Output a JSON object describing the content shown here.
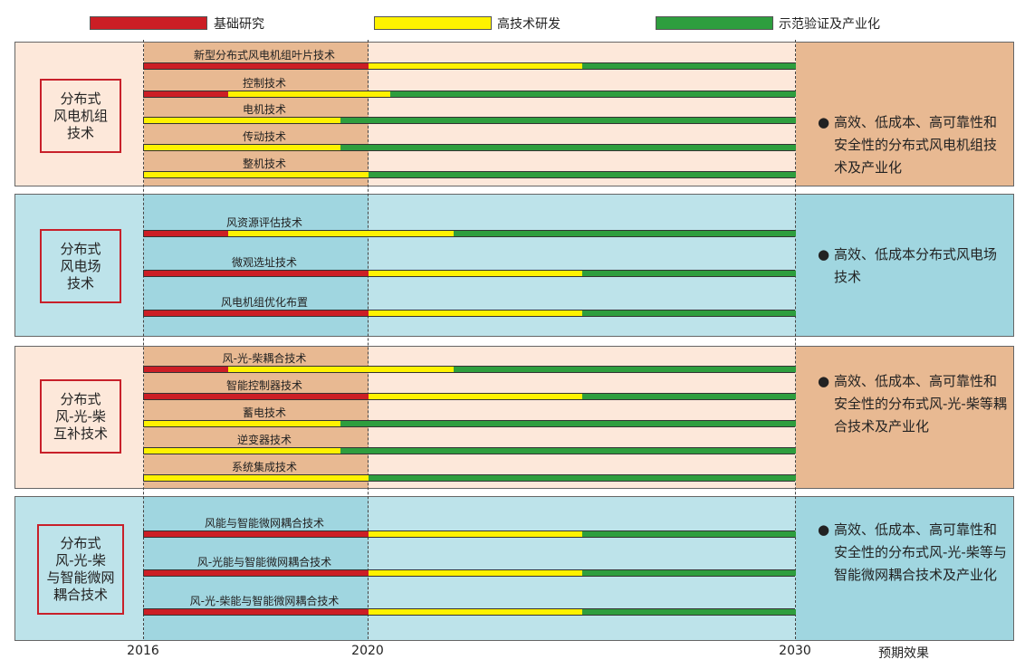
{
  "legend": [
    {
      "label": "基础研究",
      "color": "#cc1e25"
    },
    {
      "label": "高技术研发",
      "color": "#fff200"
    },
    {
      "label": "示范验证及产业化",
      "color": "#2e9e3e"
    }
  ],
  "axis": {
    "ticks": [
      "2016",
      "2020",
      "2030"
    ],
    "outcome_header": "预期效果"
  },
  "colors": {
    "research": "#cc1e25",
    "rnd": "#fff200",
    "demo": "#2e9e3e",
    "orange_bg": "#e8b992",
    "orange_light": "#fde8da",
    "blue_bg": "#a0d6e0",
    "blue_light": "#bde3ea"
  },
  "sections": [
    {
      "title": "分布式\n风电机组\n技术",
      "theme": "orange",
      "items": [
        {
          "label": "新型分布式风电机组叶片技术",
          "segments": [
            "2016",
            "2020",
            "2025",
            "2030"
          ]
        },
        {
          "label": "控制技术",
          "segments": [
            "2016",
            "2017.5",
            "2020.5",
            "2030"
          ]
        },
        {
          "label": "电机技术",
          "segments": [
            "2016",
            "2016",
            "2019.5",
            "2030"
          ]
        },
        {
          "label": "传动技术",
          "segments": [
            "2016",
            "2016",
            "2019.5",
            "2030"
          ]
        },
        {
          "label": "整机技术",
          "segments": [
            "2016",
            "2016",
            "2020",
            "2030"
          ]
        }
      ],
      "outcome": "高效、低成本、高可靠性和安全性的分布式风电机组技术及产业化"
    },
    {
      "title": "分布式\n风电场\n技术",
      "theme": "blue",
      "items": [
        {
          "label": "风资源评估技术",
          "segments": [
            "2016",
            "2017.5",
            "2022",
            "2030"
          ]
        },
        {
          "label": "微观选址技术",
          "segments": [
            "2016",
            "2020",
            "2025",
            "2030"
          ]
        },
        {
          "label": "风电机组优化布置",
          "segments": [
            "2016",
            "2020",
            "2025",
            "2030"
          ]
        }
      ],
      "outcome": "高效、低成本分布式风电场技术"
    },
    {
      "title": "分布式\n风-光-柴\n互补技术",
      "theme": "orange",
      "items": [
        {
          "label": "风-光-柴耦合技术",
          "segments": [
            "2016",
            "2017.5",
            "2022",
            "2030"
          ]
        },
        {
          "label": "智能控制器技术",
          "segments": [
            "2016",
            "2020",
            "2025",
            "2030"
          ]
        },
        {
          "label": "蓄电技术",
          "segments": [
            "2016",
            "2016",
            "2019.5",
            "2030"
          ]
        },
        {
          "label": "逆变器技术",
          "segments": [
            "2016",
            "2016",
            "2019.5",
            "2030"
          ]
        },
        {
          "label": "系统集成技术",
          "segments": [
            "2016",
            "2016",
            "2020",
            "2030"
          ]
        }
      ],
      "outcome": "高效、低成本、高可靠性和安全性的分布式风-光-柴等耦合技术及产业化"
    },
    {
      "title": "分布式\n风-光-柴\n与智能微网\n耦合技术",
      "theme": "blue",
      "items": [
        {
          "label": "风能与智能微网耦合技术",
          "segments": [
            "2016",
            "2020",
            "2025",
            "2030"
          ]
        },
        {
          "label": "风-光能与智能微网耦合技术",
          "segments": [
            "2016",
            "2020",
            "2025",
            "2030"
          ]
        },
        {
          "label": "风-光-柴能与智能微网耦合技术",
          "segments": [
            "2016",
            "2020",
            "2025",
            "2030"
          ]
        }
      ],
      "outcome": "高效、低成本、高可靠性和安全性的分布式风-光-柴等与智能微网耦合技术及产业化"
    }
  ]
}
